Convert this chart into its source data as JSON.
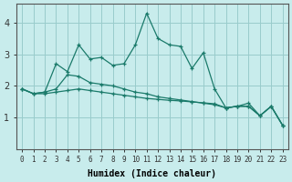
{
  "xlabel": "Humidex (Indice chaleur)",
  "background_color": "#c8ecec",
  "grid_color": "#99cccc",
  "line_color": "#1a7a6a",
  "xlim": [
    -0.5,
    23.5
  ],
  "ylim": [
    0,
    4.6
  ],
  "x": [
    0,
    1,
    2,
    3,
    4,
    5,
    6,
    7,
    8,
    9,
    10,
    11,
    12,
    13,
    14,
    15,
    16,
    17,
    18,
    19,
    20,
    21,
    22,
    23
  ],
  "line1": [
    1.9,
    1.75,
    1.8,
    2.7,
    2.45,
    3.3,
    2.85,
    2.9,
    2.65,
    2.7,
    3.3,
    4.3,
    3.5,
    3.3,
    3.25,
    2.55,
    3.05,
    1.9,
    1.3,
    1.35,
    1.45,
    1.05,
    1.35,
    0.75
  ],
  "line2": [
    1.9,
    1.75,
    1.8,
    1.9,
    2.35,
    2.3,
    2.1,
    2.05,
    2.0,
    1.9,
    1.8,
    1.75,
    1.65,
    1.6,
    1.55,
    1.5,
    1.45,
    1.4,
    1.3,
    1.35,
    1.35,
    1.05,
    1.35,
    0.75
  ],
  "line3": [
    1.9,
    1.75,
    1.75,
    1.8,
    1.85,
    1.9,
    1.85,
    1.8,
    1.75,
    1.7,
    1.65,
    1.6,
    1.57,
    1.54,
    1.52,
    1.49,
    1.46,
    1.43,
    1.3,
    1.35,
    1.35,
    1.05,
    1.35,
    0.75
  ],
  "yticks": [
    1,
    2,
    3,
    4
  ],
  "xtick_fontsize": 5.5,
  "ytick_fontsize": 7,
  "xlabel_fontsize": 7
}
